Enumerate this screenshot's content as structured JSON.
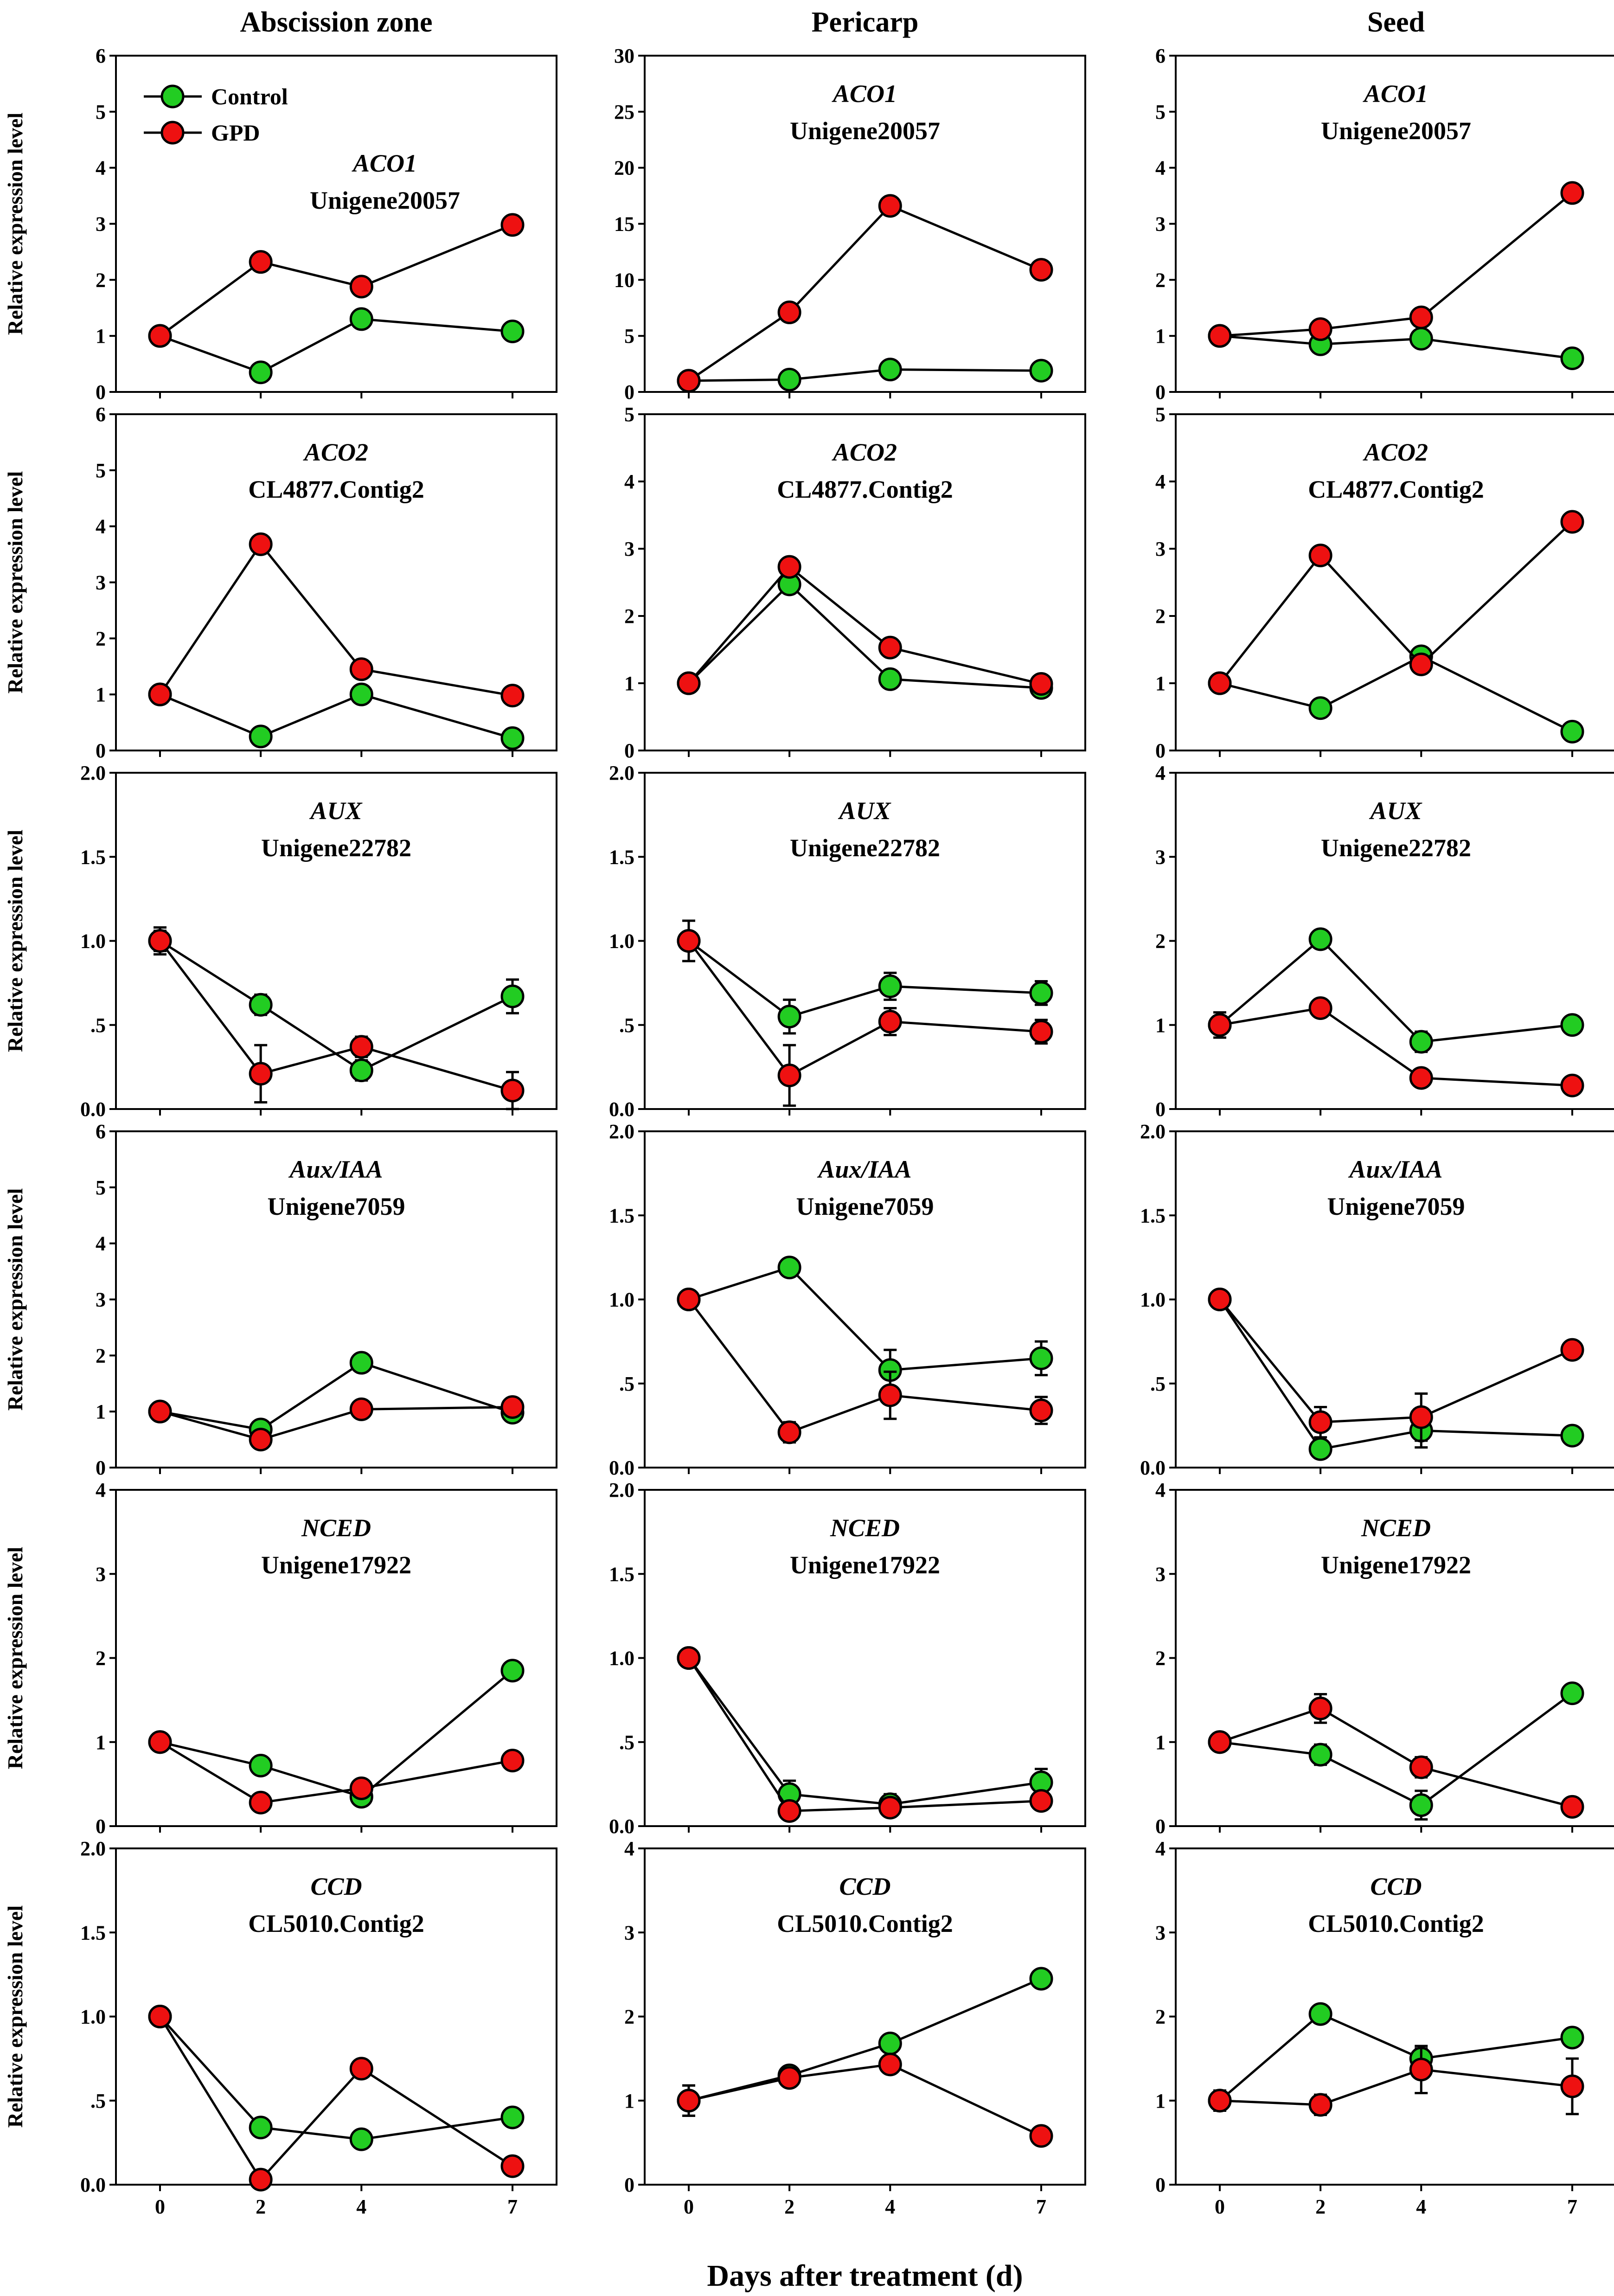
{
  "colors": {
    "control": "#22cc22",
    "gpd": "#ee1111"
  },
  "chart_data": {
    "type": "line",
    "title": "",
    "xlabel": "Days after treatment (d)",
    "ylabel": "Relative expression level",
    "x": [
      0,
      2,
      4,
      7
    ],
    "x_tick_labels": [
      "0",
      "2",
      "4",
      "7"
    ],
    "columns": [
      "Abscission zone",
      "Pericarp",
      "Seed"
    ],
    "legend": {
      "location": "top-left",
      "entries": [
        "Control",
        "GPD"
      ]
    },
    "panels": [
      {
        "row": 0,
        "col": 0,
        "gene": "ACO1",
        "contig": "Unigene20057",
        "ylim": [
          0,
          6
        ],
        "yticks": [
          "0",
          "1",
          "2",
          "3",
          "4",
          "5",
          "6"
        ],
        "series": [
          {
            "name": "Control",
            "values": [
              1.0,
              0.35,
              1.3,
              1.08
            ],
            "errors": [
              0.05,
              0.05,
              0.05,
              0.05
            ]
          },
          {
            "name": "GPD",
            "values": [
              1.0,
              2.32,
              1.88,
              2.98
            ],
            "errors": [
              0.05,
              0.05,
              0.05,
              0.05
            ]
          }
        ]
      },
      {
        "row": 0,
        "col": 1,
        "gene": "ACO1",
        "contig": "Unigene20057",
        "ylim": [
          0,
          30
        ],
        "yticks": [
          "0",
          "5",
          "10",
          "15",
          "20",
          "25",
          "30"
        ],
        "series": [
          {
            "name": "Control",
            "values": [
              1.0,
              1.1,
              2.0,
              1.9
            ],
            "errors": [
              0.2,
              0.2,
              0.2,
              0.2
            ]
          },
          {
            "name": "GPD",
            "values": [
              1.0,
              7.1,
              16.6,
              10.9
            ],
            "errors": [
              0.2,
              0.2,
              0.2,
              0.2
            ]
          }
        ]
      },
      {
        "row": 0,
        "col": 2,
        "gene": "ACO1",
        "contig": "Unigene20057",
        "ylim": [
          0,
          6
        ],
        "yticks": [
          "0",
          "1",
          "2",
          "3",
          "4",
          "5",
          "6"
        ],
        "series": [
          {
            "name": "Control",
            "values": [
              1.0,
              0.85,
              0.95,
              0.6
            ],
            "errors": [
              0.05,
              0.05,
              0.05,
              0.05
            ]
          },
          {
            "name": "GPD",
            "values": [
              1.0,
              1.12,
              1.33,
              3.55
            ],
            "errors": [
              0.05,
              0.05,
              0.05,
              0.05
            ]
          }
        ]
      },
      {
        "row": 1,
        "col": 0,
        "gene": "ACO2",
        "contig": "CL4877.Contig2",
        "ylim": [
          0,
          6
        ],
        "yticks": [
          "0",
          "1",
          "2",
          "3",
          "4",
          "5",
          "6"
        ],
        "series": [
          {
            "name": "Control",
            "values": [
              1.0,
              0.25,
              1.0,
              0.22
            ],
            "errors": [
              0.05,
              0.05,
              0.05,
              0.05
            ]
          },
          {
            "name": "GPD",
            "values": [
              1.0,
              3.68,
              1.45,
              0.98
            ],
            "errors": [
              0.05,
              0.05,
              0.05,
              0.05
            ]
          }
        ]
      },
      {
        "row": 1,
        "col": 1,
        "gene": "ACO2",
        "contig": "CL4877.Contig2",
        "ylim": [
          0,
          5
        ],
        "yticks": [
          "0",
          "1",
          "2",
          "3",
          "4",
          "5"
        ],
        "series": [
          {
            "name": "Control",
            "values": [
              1.0,
              2.47,
              1.06,
              0.93
            ],
            "errors": [
              0.05,
              0.05,
              0.05,
              0.05
            ]
          },
          {
            "name": "GPD",
            "values": [
              1.0,
              2.73,
              1.53,
              0.99
            ],
            "errors": [
              0.05,
              0.05,
              0.05,
              0.05
            ]
          }
        ]
      },
      {
        "row": 1,
        "col": 2,
        "gene": "ACO2",
        "contig": "CL4877.Contig2",
        "ylim": [
          0,
          5
        ],
        "yticks": [
          "0",
          "1",
          "2",
          "3",
          "4",
          "5"
        ],
        "series": [
          {
            "name": "Control",
            "values": [
              1.0,
              0.63,
              1.4,
              0.28
            ],
            "errors": [
              0.05,
              0.05,
              0.05,
              0.05
            ]
          },
          {
            "name": "GPD",
            "values": [
              1.0,
              2.9,
              1.28,
              3.4
            ],
            "errors": [
              0.05,
              0.05,
              0.05,
              0.05
            ]
          }
        ]
      },
      {
        "row": 2,
        "col": 0,
        "gene": "AUX",
        "contig": "Unigene22782",
        "ylim": [
          0,
          2
        ],
        "yticks": [
          "0.0",
          ".5",
          "1.0",
          "1.5",
          "2.0"
        ],
        "series": [
          {
            "name": "Control",
            "values": [
              1.0,
              0.62,
              0.23,
              0.67
            ],
            "errors": [
              0.06,
              0.06,
              0.06,
              0.1
            ]
          },
          {
            "name": "GPD",
            "values": [
              1.0,
              0.21,
              0.37,
              0.11
            ],
            "errors": [
              0.08,
              0.17,
              0.06,
              0.11
            ]
          }
        ]
      },
      {
        "row": 2,
        "col": 1,
        "gene": "AUX",
        "contig": "Unigene22782",
        "ylim": [
          0,
          2
        ],
        "yticks": [
          "0.0",
          ".5",
          "1.0",
          "1.5",
          "2.0"
        ],
        "series": [
          {
            "name": "Control",
            "values": [
              1.0,
              0.55,
              0.73,
              0.69
            ],
            "errors": [
              0.12,
              0.1,
              0.08,
              0.07
            ]
          },
          {
            "name": "GPD",
            "values": [
              1.0,
              0.2,
              0.52,
              0.46
            ],
            "errors": [
              0.12,
              0.18,
              0.08,
              0.07
            ]
          }
        ]
      },
      {
        "row": 2,
        "col": 2,
        "gene": "AUX",
        "contig": "Unigene22782",
        "ylim": [
          0,
          4
        ],
        "yticks": [
          "0",
          "1",
          "2",
          "3",
          "4"
        ],
        "series": [
          {
            "name": "Control",
            "values": [
              1.0,
              2.02,
              0.8,
              1.0
            ],
            "errors": [
              0.05,
              0.05,
              0.12,
              0.05
            ]
          },
          {
            "name": "GPD",
            "values": [
              1.0,
              1.2,
              0.37,
              0.28
            ],
            "errors": [
              0.15,
              0.05,
              0.05,
              0.05
            ]
          }
        ]
      },
      {
        "row": 3,
        "col": 0,
        "gene": "Aux/IAA",
        "contig": "Unigene7059",
        "ylim": [
          0,
          6
        ],
        "yticks": [
          "0",
          "1",
          "2",
          "3",
          "4",
          "5",
          "6"
        ],
        "series": [
          {
            "name": "Control",
            "values": [
              1.0,
              0.68,
              1.87,
              0.98
            ],
            "errors": [
              0.05,
              0.05,
              0.05,
              0.05
            ]
          },
          {
            "name": "GPD",
            "values": [
              1.0,
              0.5,
              1.04,
              1.08
            ],
            "errors": [
              0.05,
              0.05,
              0.05,
              0.05
            ]
          }
        ]
      },
      {
        "row": 3,
        "col": 1,
        "gene": "Aux/IAA",
        "contig": "Unigene7059",
        "ylim": [
          0,
          2
        ],
        "yticks": [
          "0.0",
          ".5",
          "1.0",
          "1.5",
          "2.0"
        ],
        "series": [
          {
            "name": "Control",
            "values": [
              1.0,
              1.19,
              0.58,
              0.65
            ],
            "errors": [
              0.03,
              0.03,
              0.12,
              0.1
            ]
          },
          {
            "name": "GPD",
            "values": [
              1.0,
              0.21,
              0.43,
              0.34
            ],
            "errors": [
              0.03,
              0.06,
              0.14,
              0.08
            ]
          }
        ]
      },
      {
        "row": 3,
        "col": 2,
        "gene": "Aux/IAA",
        "contig": "Unigene7059",
        "ylim": [
          0,
          2
        ],
        "yticks": [
          "0.0",
          ".5",
          "1.0",
          "1.5",
          "2.0"
        ],
        "series": [
          {
            "name": "Control",
            "values": [
              1.0,
              0.11,
              0.22,
              0.19
            ],
            "errors": [
              0.03,
              0.04,
              0.1,
              0.05
            ]
          },
          {
            "name": "GPD",
            "values": [
              1.0,
              0.27,
              0.3,
              0.7
            ],
            "errors": [
              0.03,
              0.09,
              0.14,
              0.03
            ]
          }
        ]
      },
      {
        "row": 4,
        "col": 0,
        "gene": "NCED",
        "contig": "Unigene17922",
        "ylim": [
          0,
          4
        ],
        "yticks": [
          "0",
          "1",
          "2",
          "3",
          "4"
        ],
        "series": [
          {
            "name": "Control",
            "values": [
              1.0,
              0.72,
              0.35,
              1.85
            ],
            "errors": [
              0.05,
              0.05,
              0.05,
              0.05
            ]
          },
          {
            "name": "GPD",
            "values": [
              1.0,
              0.28,
              0.45,
              0.78
            ],
            "errors": [
              0.05,
              0.05,
              0.05,
              0.05
            ]
          }
        ]
      },
      {
        "row": 4,
        "col": 1,
        "gene": "NCED",
        "contig": "Unigene17922",
        "ylim": [
          0,
          2
        ],
        "yticks": [
          "0.0",
          ".5",
          "1.0",
          "1.5",
          "2.0"
        ],
        "series": [
          {
            "name": "Control",
            "values": [
              1.0,
              0.19,
              0.13,
              0.26
            ],
            "errors": [
              0.03,
              0.08,
              0.06,
              0.08
            ]
          },
          {
            "name": "GPD",
            "values": [
              1.0,
              0.09,
              0.11,
              0.15
            ],
            "errors": [
              0.03,
              0.03,
              0.04,
              0.04
            ]
          }
        ]
      },
      {
        "row": 4,
        "col": 2,
        "gene": "NCED",
        "contig": "Unigene17922",
        "ylim": [
          0,
          4
        ],
        "yticks": [
          "0",
          "1",
          "2",
          "3",
          "4"
        ],
        "series": [
          {
            "name": "Control",
            "values": [
              1.0,
              0.85,
              0.25,
              1.58
            ],
            "errors": [
              0.1,
              0.12,
              0.17,
              0.05
            ]
          },
          {
            "name": "GPD",
            "values": [
              1.0,
              1.4,
              0.7,
              0.23
            ],
            "errors": [
              0.1,
              0.17,
              0.12,
              0.1
            ]
          }
        ]
      },
      {
        "row": 5,
        "col": 0,
        "gene": "CCD",
        "contig": "CL5010.Contig2",
        "ylim": [
          0,
          2
        ],
        "yticks": [
          "0.0",
          ".5",
          "1.0",
          "1.5",
          "2.0"
        ],
        "series": [
          {
            "name": "Control",
            "values": [
              1.0,
              0.34,
              0.27,
              0.4
            ],
            "errors": [
              0.03,
              0.03,
              0.03,
              0.03
            ]
          },
          {
            "name": "GPD",
            "values": [
              1.0,
              0.03,
              0.69,
              0.11
            ],
            "errors": [
              0.03,
              0.03,
              0.03,
              0.03
            ]
          }
        ]
      },
      {
        "row": 5,
        "col": 1,
        "gene": "CCD",
        "contig": "CL5010.Contig2",
        "ylim": [
          0,
          4
        ],
        "yticks": [
          "0",
          "1",
          "2",
          "3",
          "4"
        ],
        "series": [
          {
            "name": "Control",
            "values": [
              1.0,
              1.3,
              1.68,
              2.45
            ],
            "errors": [
              0.18,
              0.08,
              0.08,
              0.05
            ]
          },
          {
            "name": "GPD",
            "values": [
              1.0,
              1.27,
              1.43,
              0.58
            ],
            "errors": [
              0.18,
              0.08,
              0.08,
              0.05
            ]
          }
        ]
      },
      {
        "row": 5,
        "col": 2,
        "gene": "CCD",
        "contig": "CL5010.Contig2",
        "ylim": [
          0,
          4
        ],
        "yticks": [
          "0",
          "1",
          "2",
          "3",
          "4"
        ],
        "series": [
          {
            "name": "Control",
            "values": [
              1.0,
              2.03,
              1.5,
              1.75
            ],
            "errors": [
              0.12,
              0.05,
              0.12,
              0.1
            ]
          },
          {
            "name": "GPD",
            "values": [
              1.0,
              0.95,
              1.37,
              1.17
            ],
            "errors": [
              0.12,
              0.12,
              0.28,
              0.33
            ]
          }
        ]
      }
    ]
  }
}
